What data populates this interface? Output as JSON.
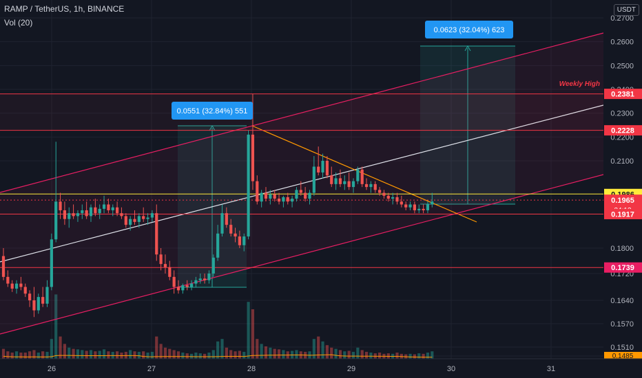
{
  "header": {
    "symbol": "RAMP / TetherUS, 1h, BINANCE",
    "indicator": "Vol (20)",
    "currency": "USDT"
  },
  "colors": {
    "background": "#131722",
    "grid": "#1f2330",
    "up": "#26a69a",
    "down": "#ef5350",
    "channel": "#e91e63",
    "mid": "#e0e3eb",
    "trend": "#ff9800",
    "level": "#f23645",
    "yellow": "#ffeb3b",
    "info": "#2196f3"
  },
  "chart_data": {
    "type": "candlestick",
    "y_axis": {
      "ylim": [
        0.1485,
        0.27
      ],
      "ticks": [
        "0.2700",
        "0.2600",
        "0.2500",
        "0.2400",
        "0.2300",
        "0.2200",
        "0.2100",
        "0.1800",
        "0.1720",
        "0.1640",
        "0.1570",
        "0.1510",
        "0.1485"
      ]
    },
    "x_axis": {
      "ticks": [
        "26",
        "27",
        "28",
        "29",
        "30",
        "31"
      ]
    },
    "candles": [
      [
        0.1775,
        0.18,
        0.17,
        0.171
      ],
      [
        0.171,
        0.173,
        0.168,
        0.169
      ],
      [
        0.169,
        0.17,
        0.1665,
        0.1675
      ],
      [
        0.1675,
        0.17,
        0.166,
        0.169
      ],
      [
        0.169,
        0.171,
        0.167,
        0.168
      ],
      [
        0.168,
        0.169,
        0.165,
        0.166
      ],
      [
        0.166,
        0.167,
        0.162,
        0.164
      ],
      [
        0.164,
        0.168,
        0.159,
        0.161
      ],
      [
        0.161,
        0.166,
        0.16,
        0.165
      ],
      [
        0.165,
        0.168,
        0.162,
        0.163
      ],
      [
        0.163,
        0.17,
        0.162,
        0.168
      ],
      [
        0.168,
        0.185,
        0.167,
        0.183
      ],
      [
        0.183,
        0.218,
        0.182,
        0.196
      ],
      [
        0.196,
        0.199,
        0.19,
        0.193
      ],
      [
        0.193,
        0.196,
        0.188,
        0.19
      ],
      [
        0.19,
        0.194,
        0.187,
        0.192
      ],
      [
        0.192,
        0.195,
        0.19,
        0.191
      ],
      [
        0.191,
        0.193,
        0.189,
        0.192
      ],
      [
        0.192,
        0.195,
        0.19,
        0.193
      ],
      [
        0.193,
        0.196,
        0.19,
        0.191
      ],
      [
        0.191,
        0.195,
        0.189,
        0.194
      ],
      [
        0.194,
        0.197,
        0.191,
        0.192
      ],
      [
        0.192,
        0.195,
        0.19,
        0.1935
      ],
      [
        0.1935,
        0.198,
        0.192,
        0.195
      ],
      [
        0.195,
        0.197,
        0.192,
        0.193
      ],
      [
        0.193,
        0.195,
        0.191,
        0.194
      ],
      [
        0.194,
        0.196,
        0.191,
        0.192
      ],
      [
        0.192,
        0.194,
        0.19,
        0.191
      ],
      [
        0.191,
        0.192,
        0.187,
        0.188
      ],
      [
        0.188,
        0.191,
        0.186,
        0.19
      ],
      [
        0.19,
        0.193,
        0.188,
        0.189
      ],
      [
        0.189,
        0.192,
        0.187,
        0.191
      ],
      [
        0.191,
        0.194,
        0.189,
        0.19
      ],
      [
        0.19,
        0.192,
        0.188,
        0.1905
      ],
      [
        0.1905,
        0.193,
        0.189,
        0.192
      ],
      [
        0.192,
        0.195,
        0.176,
        0.178
      ],
      [
        0.178,
        0.18,
        0.173,
        0.175
      ],
      [
        0.175,
        0.178,
        0.172,
        0.174
      ],
      [
        0.174,
        0.176,
        0.17,
        0.171
      ],
      [
        0.171,
        0.173,
        0.166,
        0.168
      ],
      [
        0.168,
        0.17,
        0.166,
        0.167
      ],
      [
        0.167,
        0.169,
        0.166,
        0.1685
      ],
      [
        0.1685,
        0.17,
        0.167,
        0.168
      ],
      [
        0.168,
        0.17,
        0.167,
        0.169
      ],
      [
        0.169,
        0.171,
        0.168,
        0.17
      ],
      [
        0.17,
        0.172,
        0.169,
        0.1705
      ],
      [
        0.1705,
        0.172,
        0.169,
        0.17
      ],
      [
        0.17,
        0.173,
        0.169,
        0.172
      ],
      [
        0.172,
        0.178,
        0.171,
        0.177
      ],
      [
        0.177,
        0.188,
        0.176,
        0.185
      ],
      [
        0.185,
        0.195,
        0.184,
        0.192
      ],
      [
        0.192,
        0.194,
        0.187,
        0.188
      ],
      [
        0.188,
        0.19,
        0.184,
        0.185
      ],
      [
        0.185,
        0.187,
        0.182,
        0.184
      ],
      [
        0.184,
        0.186,
        0.18,
        0.181
      ],
      [
        0.181,
        0.185,
        0.179,
        0.184
      ],
      [
        0.184,
        0.2228,
        0.183,
        0.221
      ],
      [
        0.221,
        0.2381,
        0.2,
        0.203
      ],
      [
        0.203,
        0.205,
        0.195,
        0.196
      ],
      [
        0.196,
        0.2,
        0.194,
        0.199
      ],
      [
        0.199,
        0.201,
        0.196,
        0.197
      ],
      [
        0.197,
        0.2,
        0.195,
        0.1985
      ],
      [
        0.1985,
        0.2,
        0.196,
        0.197
      ],
      [
        0.197,
        0.199,
        0.195,
        0.196
      ],
      [
        0.196,
        0.198,
        0.194,
        0.1975
      ],
      [
        0.1975,
        0.199,
        0.195,
        0.196
      ],
      [
        0.196,
        0.198,
        0.194,
        0.197
      ],
      [
        0.197,
        0.201,
        0.196,
        0.2
      ],
      [
        0.2,
        0.203,
        0.198,
        0.199
      ],
      [
        0.199,
        0.201,
        0.196,
        0.197
      ],
      [
        0.197,
        0.2,
        0.195,
        0.199
      ],
      [
        0.199,
        0.212,
        0.198,
        0.208
      ],
      [
        0.208,
        0.216,
        0.205,
        0.206
      ],
      [
        0.206,
        0.213,
        0.204,
        0.21
      ],
      [
        0.21,
        0.212,
        0.204,
        0.205
      ],
      [
        0.205,
        0.208,
        0.201,
        0.202
      ],
      [
        0.202,
        0.206,
        0.2,
        0.204
      ],
      [
        0.204,
        0.207,
        0.201,
        0.202
      ],
      [
        0.202,
        0.205,
        0.2,
        0.203
      ],
      [
        0.203,
        0.206,
        0.2,
        0.201
      ],
      [
        0.201,
        0.204,
        0.199,
        0.203
      ],
      [
        0.203,
        0.208,
        0.202,
        0.207
      ],
      [
        0.207,
        0.208,
        0.201,
        0.202
      ],
      [
        0.202,
        0.204,
        0.2,
        0.201
      ],
      [
        0.201,
        0.203,
        0.199,
        0.202
      ],
      [
        0.202,
        0.203,
        0.199,
        0.2
      ],
      [
        0.2,
        0.201,
        0.198,
        0.199
      ],
      [
        0.199,
        0.2,
        0.197,
        0.198
      ],
      [
        0.198,
        0.199,
        0.196,
        0.197
      ],
      [
        0.197,
        0.199,
        0.195,
        0.1975
      ],
      [
        0.1975,
        0.199,
        0.195,
        0.196
      ],
      [
        0.196,
        0.198,
        0.194,
        0.195
      ],
      [
        0.195,
        0.196,
        0.193,
        0.194
      ],
      [
        0.194,
        0.196,
        0.193,
        0.195
      ],
      [
        0.195,
        0.196,
        0.192,
        0.193
      ],
      [
        0.193,
        0.195,
        0.192,
        0.1935
      ],
      [
        0.1935,
        0.195,
        0.192,
        0.193
      ],
      [
        0.193,
        0.196,
        0.192,
        0.195
      ],
      [
        0.195,
        0.199,
        0.194,
        0.196
      ]
    ],
    "volume": [
      40,
      30,
      25,
      30,
      25,
      25,
      30,
      35,
      25,
      30,
      28,
      80,
      260,
      90,
      60,
      45,
      40,
      38,
      35,
      32,
      35,
      30,
      32,
      38,
      30,
      28,
      30,
      25,
      28,
      35,
      30,
      28,
      30,
      25,
      28,
      90,
      60,
      45,
      40,
      35,
      30,
      25,
      22,
      20,
      25,
      22,
      20,
      25,
      35,
      70,
      80,
      45,
      35,
      30,
      32,
      28,
      230,
      200,
      80,
      60,
      50,
      45,
      40,
      38,
      35,
      30,
      32,
      35,
      30,
      28,
      30,
      80,
      90,
      70,
      55,
      45,
      40,
      35,
      30,
      32,
      28,
      45,
      35,
      28,
      25,
      22,
      25,
      20,
      22,
      20,
      25,
      20,
      18,
      20,
      18,
      22,
      20,
      25,
      30
    ],
    "labels": {
      "measure1": "0.0551 (32.84%) 551",
      "measure2": "0.0623 (32.04%) 623",
      "weekly_high": "Weekly High",
      "timer": "34:13"
    },
    "levels": [
      {
        "value": 0.2381,
        "label": "0.2381"
      },
      {
        "value": 0.2228,
        "label": "0.2228"
      },
      {
        "value": 0.1986,
        "label": "0.1986"
      },
      {
        "value": 0.1965,
        "label": "0.1965"
      },
      {
        "value": 0.1917,
        "label": "0.1917"
      },
      {
        "value": 0.1739,
        "label": "0.1739"
      }
    ],
    "footer_label": "0.1485"
  }
}
